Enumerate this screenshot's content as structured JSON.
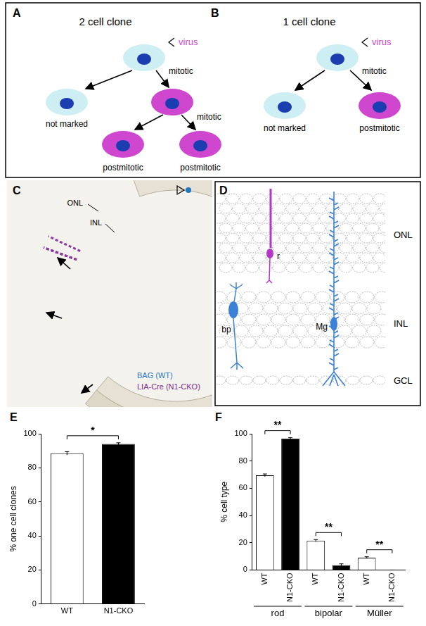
{
  "panels": {
    "A": {
      "label": "A",
      "title": "2 cell clone",
      "virus_label": "virus",
      "cells": [
        {
          "label": "mitotic",
          "marked": false
        },
        {
          "label": "not marked",
          "marked": false
        },
        {
          "label": "mitotic",
          "marked": true
        },
        {
          "label": "postmitotic",
          "marked": true
        },
        {
          "label": "postmitotic",
          "marked": true
        }
      ]
    },
    "B": {
      "label": "B",
      "title": "1 cell clone",
      "virus_label": "virus",
      "cells": [
        {
          "label": "mitotic",
          "marked": false
        },
        {
          "label": "not marked",
          "marked": false
        },
        {
          "label": "postmitotic",
          "marked": true
        }
      ]
    },
    "C": {
      "label": "C",
      "layers": [
        "ONL",
        "INL"
      ],
      "stains": [
        {
          "text": "BAG (WT)",
          "color": "#1f78c0"
        },
        {
          "text": "LIA-Cre (N1-CKO)",
          "color": "#7a2e8e"
        }
      ]
    },
    "D": {
      "label": "D",
      "layers": [
        "ONL",
        "INL",
        "GCL"
      ],
      "cells": [
        {
          "label": "r",
          "color": "#b437c8"
        },
        {
          "label": "bp",
          "color": "#3b82d6"
        },
        {
          "label": "Mg",
          "color": "#3b82d6"
        }
      ]
    }
  },
  "chart_data": [
    {
      "panel": "E",
      "type": "bar",
      "categories": [
        "WT",
        "N1-CKO"
      ],
      "values": [
        88.5,
        94.0
      ],
      "errors": [
        1.0,
        0.7
      ],
      "colors": [
        "#ffffff",
        "#000000"
      ],
      "ylabel": "% one cell clones",
      "ylim": [
        0,
        100
      ],
      "yticks": [
        0,
        20,
        40,
        60,
        80,
        100
      ],
      "grid": false,
      "annotations": [
        {
          "from": 0,
          "to": 1,
          "text": "*"
        }
      ]
    },
    {
      "panel": "F",
      "type": "bar",
      "categories": [
        "WT",
        "N1-CKO",
        "WT",
        "N1-CKO",
        "WT",
        "N1-CKO"
      ],
      "groups": [
        "rod",
        "bipolar",
        "Müller"
      ],
      "values": [
        69.5,
        96.5,
        21.5,
        3.5,
        9.0,
        0.0
      ],
      "errors": [
        1.0,
        0.6,
        0.8,
        1.0,
        0.7,
        0.0
      ],
      "colors": [
        "#ffffff",
        "#000000",
        "#ffffff",
        "#000000",
        "#ffffff",
        "#000000"
      ],
      "ylabel": "% cell type",
      "ylim": [
        0,
        100
      ],
      "yticks": [
        0,
        20,
        40,
        60,
        80,
        100
      ],
      "grid": false,
      "annotations": [
        {
          "from": 0,
          "to": 1,
          "text": "**"
        },
        {
          "from": 2,
          "to": 3,
          "text": "**"
        },
        {
          "from": 4,
          "to": 5,
          "text": "**"
        }
      ]
    }
  ]
}
